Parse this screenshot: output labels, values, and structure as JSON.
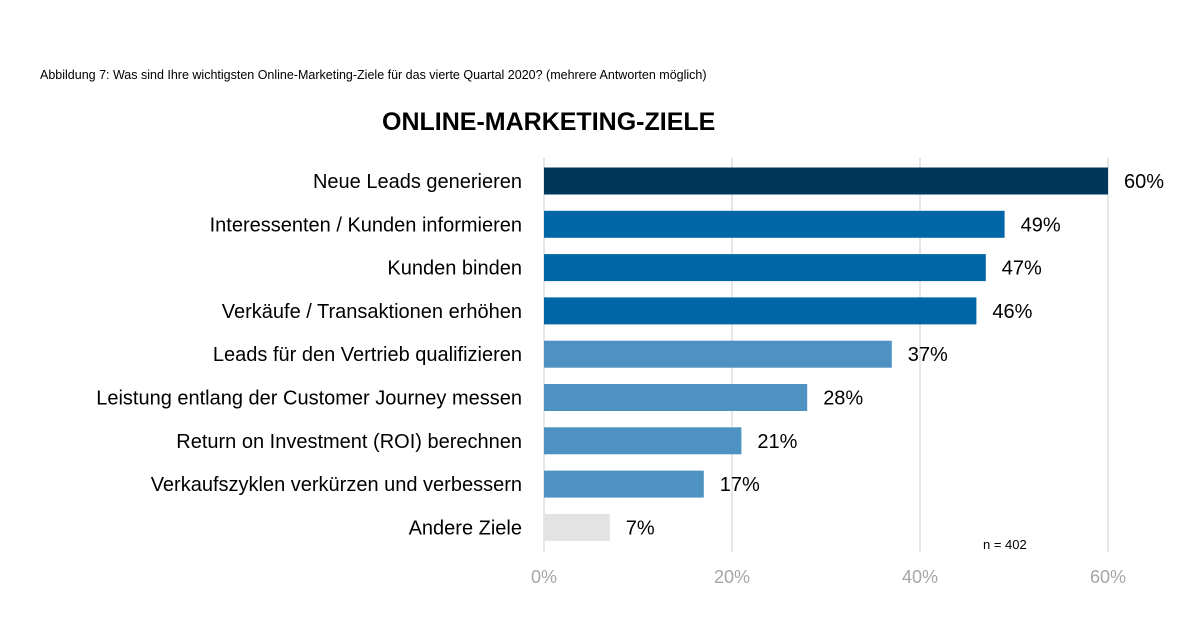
{
  "caption": "Abbildung 7: Was sind Ihre wichtigsten Online-Marketing-Ziele für das vierte Quartal 2020? (mehrere Antworten möglich)",
  "chart_data": {
    "type": "bar",
    "orientation": "horizontal",
    "title": "ONLINE-MARKETING-ZIELE",
    "xlabel": "",
    "ylabel": "",
    "xlim": [
      0,
      60
    ],
    "ticks": [
      0,
      20,
      40,
      60
    ],
    "tick_labels": [
      "0%",
      "20%",
      "40%",
      "60%"
    ],
    "grid": true,
    "categories": [
      "Neue Leads generieren",
      "Interessenten / Kunden informieren",
      "Kunden binden",
      "Verkäufe / Transaktionen erhöhen",
      "Leads für den Vertrieb qualifizieren",
      "Leistung entlang der Customer Journey messen",
      "Return on Investment (ROI) berechnen",
      "Verkaufszyklen verkürzen und verbessern",
      "Andere Ziele"
    ],
    "values": [
      60,
      49,
      47,
      46,
      37,
      28,
      21,
      17,
      7
    ],
    "value_labels": [
      "60%",
      "49%",
      "47%",
      "46%",
      "37%",
      "28%",
      "21%",
      "17%",
      "7%"
    ],
    "colors": [
      "#00375b",
      "#0066a6",
      "#0066a6",
      "#0066a6",
      "#4e92c2",
      "#4e92c2",
      "#4e92c2",
      "#4e92c2",
      "#e3e3e3"
    ],
    "note": "n = 402"
  }
}
